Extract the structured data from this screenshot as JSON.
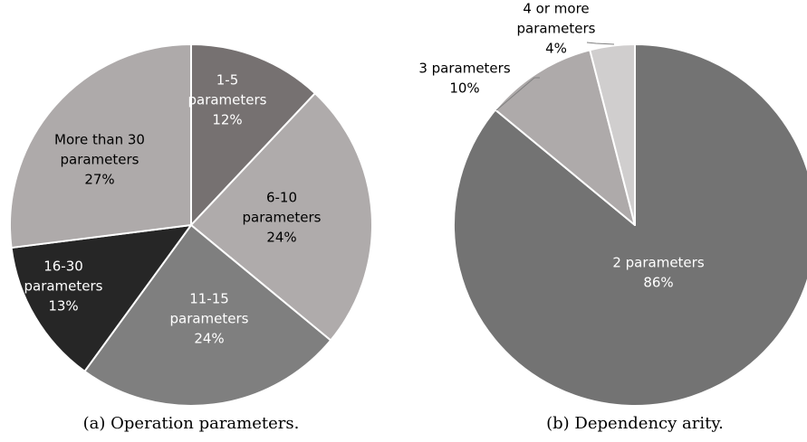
{
  "chart_data": [
    {
      "type": "pie",
      "caption": "(a) Operation parameters.",
      "slices": [
        {
          "label": [
            "1-5",
            "parameters"
          ],
          "pct_text": "12%",
          "value": 12,
          "color": "#767171",
          "text_color": "#ffffff"
        },
        {
          "label": [
            "6-10",
            "parameters"
          ],
          "pct_text": "24%",
          "value": 24,
          "color": "#afabab",
          "text_color": "#000000"
        },
        {
          "label": [
            "11-15",
            "parameters"
          ],
          "pct_text": "24%",
          "value": 24,
          "color": "#7f7f7f",
          "text_color": "#ffffff"
        },
        {
          "label": [
            "16-30",
            "parameters"
          ],
          "pct_text": "13%",
          "value": 13,
          "color": "#262626",
          "text_color": "#ffffff"
        },
        {
          "label": [
            "More than 30",
            "parameters"
          ],
          "pct_text": "27%",
          "value": 27,
          "color": "#aeaaaa",
          "text_color": "#000000"
        }
      ]
    },
    {
      "type": "pie",
      "caption": "(b) Dependency arity.",
      "slices": [
        {
          "label": [
            "2 parameters"
          ],
          "pct_text": "86%",
          "value": 86,
          "color": "#737373",
          "text_color": "#ffffff"
        },
        {
          "label": [
            "3 parameters"
          ],
          "pct_text": "10%",
          "value": 10,
          "color": "#aeaaaa",
          "text_color": "#000000"
        },
        {
          "label": [
            "4 or more",
            "parameters"
          ],
          "pct_text": "4%",
          "value": 4,
          "color": "#d0cece",
          "text_color": "#000000"
        }
      ]
    }
  ]
}
